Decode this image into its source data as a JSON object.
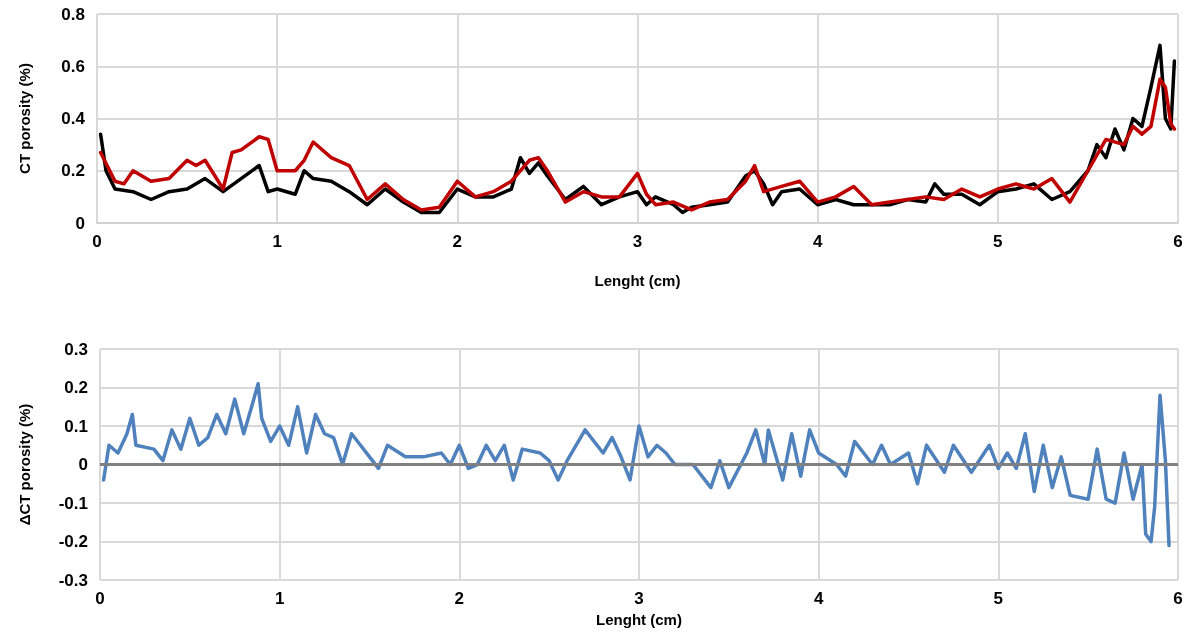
{
  "chart_data": [
    {
      "type": "line",
      "xlabel": "Lenght (cm)",
      "ylabel": "CT porosity (%)",
      "xlim": [
        0,
        6
      ],
      "xticks": [
        0,
        1,
        2,
        3,
        4,
        5,
        6
      ],
      "ylim": [
        0,
        0.8
      ],
      "yticks": [
        0,
        0.2,
        0.4,
        0.6,
        0.8
      ],
      "grid": true,
      "marker": "none",
      "line_style": "solid",
      "series": [
        {
          "color": "#000000",
          "x": [
            0.02,
            0.05,
            0.1,
            0.2,
            0.3,
            0.4,
            0.5,
            0.6,
            0.7,
            0.8,
            0.9,
            0.95,
            1.0,
            1.1,
            1.15,
            1.2,
            1.3,
            1.4,
            1.5,
            1.6,
            1.7,
            1.8,
            1.9,
            2.0,
            2.1,
            2.2,
            2.3,
            2.35,
            2.4,
            2.45,
            2.5,
            2.6,
            2.7,
            2.8,
            2.9,
            3.0,
            3.05,
            3.1,
            3.2,
            3.25,
            3.3,
            3.4,
            3.5,
            3.6,
            3.65,
            3.7,
            3.75,
            3.8,
            3.9,
            4.0,
            4.1,
            4.2,
            4.3,
            4.4,
            4.5,
            4.6,
            4.65,
            4.7,
            4.8,
            4.9,
            5.0,
            5.1,
            5.2,
            5.3,
            5.4,
            5.5,
            5.55,
            5.6,
            5.65,
            5.7,
            5.75,
            5.8,
            5.85,
            5.9,
            5.93,
            5.96,
            5.98
          ],
          "values": [
            0.34,
            0.2,
            0.13,
            0.12,
            0.09,
            0.12,
            0.13,
            0.17,
            0.12,
            0.17,
            0.22,
            0.12,
            0.13,
            0.11,
            0.2,
            0.17,
            0.16,
            0.12,
            0.07,
            0.13,
            0.08,
            0.04,
            0.04,
            0.13,
            0.1,
            0.1,
            0.13,
            0.25,
            0.19,
            0.23,
            0.18,
            0.09,
            0.14,
            0.07,
            0.1,
            0.12,
            0.07,
            0.1,
            0.07,
            0.04,
            0.06,
            0.07,
            0.08,
            0.18,
            0.2,
            0.15,
            0.07,
            0.12,
            0.13,
            0.07,
            0.09,
            0.07,
            0.07,
            0.07,
            0.09,
            0.08,
            0.15,
            0.11,
            0.11,
            0.07,
            0.12,
            0.13,
            0.15,
            0.09,
            0.12,
            0.2,
            0.3,
            0.25,
            0.36,
            0.28,
            0.4,
            0.37,
            0.52,
            0.68,
            0.4,
            0.36,
            0.62
          ]
        },
        {
          "color": "#c00000",
          "x": [
            0.02,
            0.1,
            0.15,
            0.2,
            0.3,
            0.4,
            0.5,
            0.55,
            0.6,
            0.7,
            0.75,
            0.8,
            0.9,
            0.95,
            1.0,
            1.1,
            1.15,
            1.2,
            1.3,
            1.4,
            1.5,
            1.6,
            1.7,
            1.8,
            1.9,
            2.0,
            2.1,
            2.2,
            2.3,
            2.4,
            2.45,
            2.5,
            2.6,
            2.7,
            2.8,
            2.9,
            3.0,
            3.05,
            3.1,
            3.2,
            3.3,
            3.4,
            3.5,
            3.6,
            3.65,
            3.7,
            3.8,
            3.9,
            4.0,
            4.1,
            4.2,
            4.3,
            4.4,
            4.5,
            4.6,
            4.7,
            4.8,
            4.9,
            5.0,
            5.1,
            5.2,
            5.3,
            5.4,
            5.5,
            5.6,
            5.7,
            5.75,
            5.8,
            5.85,
            5.9,
            5.93,
            5.96,
            5.98
          ],
          "values": [
            0.27,
            0.16,
            0.15,
            0.2,
            0.16,
            0.17,
            0.24,
            0.22,
            0.24,
            0.13,
            0.27,
            0.28,
            0.33,
            0.32,
            0.2,
            0.2,
            0.24,
            0.31,
            0.25,
            0.22,
            0.09,
            0.15,
            0.09,
            0.05,
            0.06,
            0.16,
            0.1,
            0.12,
            0.16,
            0.24,
            0.25,
            0.2,
            0.08,
            0.12,
            0.1,
            0.1,
            0.19,
            0.11,
            0.07,
            0.08,
            0.05,
            0.08,
            0.09,
            0.16,
            0.22,
            0.12,
            0.14,
            0.16,
            0.08,
            0.1,
            0.14,
            0.07,
            0.08,
            0.09,
            0.1,
            0.09,
            0.13,
            0.1,
            0.13,
            0.15,
            0.13,
            0.17,
            0.08,
            0.2,
            0.32,
            0.3,
            0.37,
            0.34,
            0.37,
            0.55,
            0.52,
            0.38,
            0.36
          ]
        }
      ]
    },
    {
      "type": "line",
      "xlabel": "Lenght (cm)",
      "ylabel": "ΔCT porosity (%)",
      "xlim": [
        0,
        6
      ],
      "xticks": [
        0,
        1,
        2,
        3,
        4,
        5,
        6
      ],
      "ylim": [
        -0.3,
        0.3
      ],
      "yticks": [
        -0.3,
        -0.2,
        -0.1,
        0,
        0.1,
        0.2,
        0.3
      ],
      "grid": true,
      "marker": "none",
      "line_style": "solid",
      "ref_lines": [
        {
          "axis": "y",
          "value": 0,
          "color": "#808080"
        }
      ],
      "series": [
        {
          "color": "#4f81bd",
          "x": [
            0.02,
            0.05,
            0.1,
            0.15,
            0.18,
            0.2,
            0.3,
            0.35,
            0.4,
            0.45,
            0.5,
            0.55,
            0.6,
            0.65,
            0.7,
            0.75,
            0.8,
            0.85,
            0.88,
            0.9,
            0.95,
            1.0,
            1.05,
            1.1,
            1.15,
            1.2,
            1.25,
            1.3,
            1.35,
            1.4,
            1.45,
            1.5,
            1.55,
            1.6,
            1.7,
            1.8,
            1.9,
            1.95,
            2.0,
            2.05,
            2.1,
            2.15,
            2.2,
            2.25,
            2.3,
            2.35,
            2.45,
            2.5,
            2.55,
            2.6,
            2.7,
            2.8,
            2.85,
            2.9,
            2.95,
            3.0,
            3.05,
            3.1,
            3.15,
            3.2,
            3.3,
            3.4,
            3.45,
            3.5,
            3.6,
            3.65,
            3.7,
            3.72,
            3.8,
            3.85,
            3.9,
            3.95,
            4.0,
            4.1,
            4.15,
            4.2,
            4.3,
            4.35,
            4.4,
            4.5,
            4.55,
            4.6,
            4.7,
            4.75,
            4.85,
            4.95,
            5.0,
            5.05,
            5.1,
            5.15,
            5.2,
            5.25,
            5.3,
            5.35,
            5.4,
            5.5,
            5.55,
            5.6,
            5.65,
            5.7,
            5.75,
            5.8,
            5.82,
            5.85,
            5.87,
            5.9,
            5.93,
            5.95
          ],
          "values": [
            -0.04,
            0.05,
            0.03,
            0.08,
            0.13,
            0.05,
            0.04,
            0.01,
            0.09,
            0.04,
            0.12,
            0.05,
            0.07,
            0.13,
            0.08,
            0.17,
            0.08,
            0.16,
            0.21,
            0.12,
            0.06,
            0.1,
            0.05,
            0.15,
            0.03,
            0.13,
            0.08,
            0.07,
            0.0,
            0.08,
            0.05,
            0.02,
            -0.01,
            0.05,
            0.02,
            0.02,
            0.03,
            0.0,
            0.05,
            -0.01,
            0.0,
            0.05,
            0.01,
            0.05,
            -0.04,
            0.04,
            0.03,
            0.01,
            -0.04,
            0.01,
            0.09,
            0.03,
            0.07,
            0.02,
            -0.04,
            0.1,
            0.02,
            0.05,
            0.03,
            0.0,
            0.0,
            -0.06,
            0.01,
            -0.06,
            0.03,
            0.09,
            0.0,
            0.09,
            -0.04,
            0.08,
            -0.03,
            0.09,
            0.03,
            0.0,
            -0.03,
            0.06,
            0.0,
            0.05,
            0.0,
            0.03,
            -0.05,
            0.05,
            -0.02,
            0.05,
            -0.02,
            0.05,
            -0.01,
            0.03,
            -0.01,
            0.08,
            -0.07,
            0.05,
            -0.06,
            0.02,
            -0.08,
            -0.09,
            0.04,
            -0.09,
            -0.1,
            0.03,
            -0.09,
            0.0,
            -0.18,
            -0.2,
            -0.11,
            0.18,
            0.01,
            -0.21
          ]
        }
      ]
    }
  ]
}
